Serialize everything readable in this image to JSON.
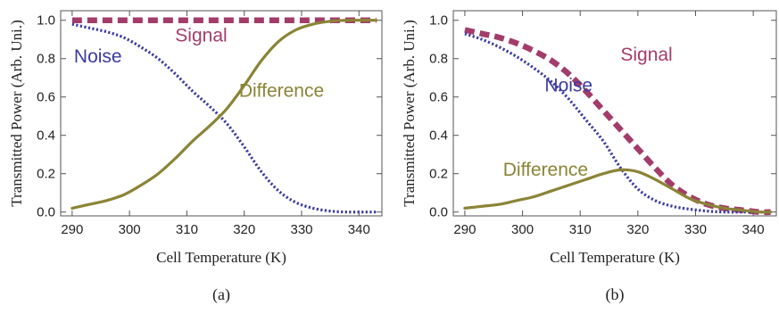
{
  "chart_data": [
    {
      "type": "line",
      "panel_label": "(a)",
      "xlabel": "Cell Temperature (K)",
      "ylabel": "Transmitted Power (Arb. Uni.)",
      "xlim": [
        288,
        344
      ],
      "ylim": [
        -0.02,
        1.05
      ],
      "xticks": [
        290,
        300,
        310,
        320,
        330,
        340
      ],
      "yticks": [
        "0.0",
        "0.2",
        "0.4",
        "0.6",
        "0.8",
        "1.0"
      ],
      "series": [
        {
          "name": "Signal",
          "color": "#a33c6b",
          "style": "dashed-thick",
          "x": [
            290,
            295,
            300,
            305,
            310,
            315,
            320,
            325,
            330,
            335,
            340,
            343
          ],
          "y": [
            1.0,
            1.0,
            1.0,
            1.0,
            1.0,
            1.0,
            1.0,
            1.0,
            1.0,
            1.0,
            1.0,
            1.0
          ]
        },
        {
          "name": "Noise",
          "color": "#3a3aa0",
          "style": "dotted",
          "x": [
            290,
            293,
            296,
            299,
            302,
            305,
            308,
            311,
            314,
            317,
            320,
            323,
            326,
            329,
            332,
            335,
            338,
            341,
            343
          ],
          "y": [
            0.98,
            0.96,
            0.94,
            0.91,
            0.86,
            0.8,
            0.72,
            0.63,
            0.55,
            0.46,
            0.34,
            0.21,
            0.11,
            0.05,
            0.02,
            0.005,
            0.0,
            0.0,
            0.0
          ]
        },
        {
          "name": "Difference",
          "color": "#8b8436",
          "style": "solid",
          "x": [
            290,
            293,
            296,
            299,
            302,
            305,
            308,
            311,
            314,
            317,
            320,
            323,
            326,
            329,
            332,
            335,
            338,
            341,
            343
          ],
          "y": [
            0.02,
            0.04,
            0.06,
            0.09,
            0.14,
            0.2,
            0.28,
            0.37,
            0.45,
            0.54,
            0.66,
            0.79,
            0.89,
            0.95,
            0.98,
            0.995,
            1.0,
            1.0,
            1.0
          ]
        }
      ],
      "annotations": [
        {
          "text": "Signal",
          "series": "Signal",
          "x": 312.5,
          "y": 0.89
        },
        {
          "text": "Noise",
          "series": "Noise",
          "x": 294.5,
          "y": 0.78
        },
        {
          "text": "Difference",
          "series": "Difference",
          "x": 326.5,
          "y": 0.6
        }
      ]
    },
    {
      "type": "line",
      "panel_label": "(b)",
      "xlabel": "Cell Temperature (K)",
      "ylabel": "Transmitted Power (Arb. Uni.)",
      "xlim": [
        288,
        344
      ],
      "ylim": [
        -0.02,
        1.05
      ],
      "xticks": [
        290,
        300,
        310,
        320,
        330,
        340
      ],
      "yticks": [
        "0.0",
        "0.2",
        "0.4",
        "0.6",
        "0.8",
        "1.0"
      ],
      "series": [
        {
          "name": "Signal",
          "color": "#a33c6b",
          "style": "dashed-thick",
          "x": [
            290,
            293,
            296,
            299,
            302,
            305,
            308,
            311,
            314,
            317,
            320,
            323,
            326,
            329,
            332,
            335,
            338,
            341,
            343
          ],
          "y": [
            0.95,
            0.93,
            0.91,
            0.88,
            0.84,
            0.79,
            0.72,
            0.63,
            0.53,
            0.43,
            0.33,
            0.23,
            0.14,
            0.08,
            0.04,
            0.02,
            0.01,
            0.0,
            0.0
          ]
        },
        {
          "name": "Noise",
          "color": "#3a3aa0",
          "style": "dotted",
          "x": [
            290,
            293,
            296,
            299,
            302,
            305,
            308,
            311,
            314,
            317,
            320,
            323,
            326,
            329,
            332,
            335,
            338,
            341,
            343
          ],
          "y": [
            0.93,
            0.9,
            0.86,
            0.81,
            0.75,
            0.68,
            0.59,
            0.48,
            0.37,
            0.23,
            0.12,
            0.06,
            0.03,
            0.015,
            0.005,
            0.0,
            0.0,
            0.0,
            0.0
          ]
        },
        {
          "name": "Difference",
          "color": "#8b8436",
          "style": "solid",
          "x": [
            290,
            293,
            296,
            299,
            302,
            305,
            308,
            311,
            314,
            317,
            320,
            323,
            326,
            329,
            332,
            335,
            338,
            341,
            343
          ],
          "y": [
            0.02,
            0.03,
            0.04,
            0.06,
            0.08,
            0.11,
            0.14,
            0.17,
            0.2,
            0.22,
            0.21,
            0.17,
            0.12,
            0.07,
            0.04,
            0.02,
            0.01,
            0.0,
            0.0
          ]
        }
      ],
      "annotations": [
        {
          "text": "Signal",
          "series": "Signal",
          "x": 321.5,
          "y": 0.79
        },
        {
          "text": "Noise",
          "series": "Noise",
          "x": 308.0,
          "y": 0.63
        },
        {
          "text": "Difference",
          "series": "Difference",
          "x": 304.0,
          "y": 0.19
        }
      ]
    }
  ]
}
